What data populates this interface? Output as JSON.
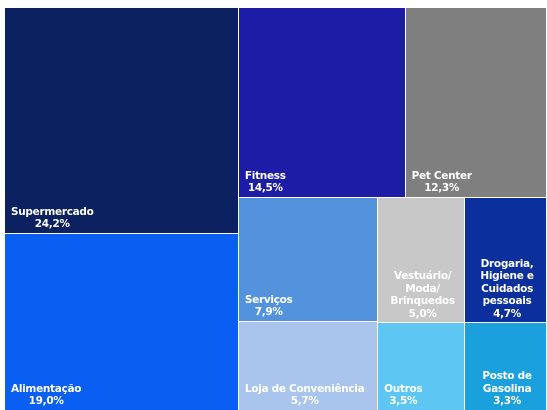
{
  "chart_data": {
    "type": "treemap",
    "categories": [
      "Supermercado",
      "Alimentação",
      "Fitness",
      "Pet Center",
      "Serviços",
      "Loja de Conveniência",
      "Vestuário/ Moda/ Brinquedos",
      "Drogaria, Higiene e Cuidados pessoais",
      "Outros",
      "Posto de Gasolina"
    ],
    "values": [
      24.2,
      19.0,
      14.5,
      12.3,
      7.9,
      5.7,
      5.0,
      4.7,
      3.5,
      3.3
    ],
    "value_labels": [
      "24,2%",
      "19,0%",
      "14,5%",
      "12,3%",
      "7,9%",
      "5,7%",
      "5,0%",
      "4,7%",
      "3,5%",
      "3,3%"
    ],
    "colors": [
      "#0b2160",
      "#0a5ef2",
      "#1c1ca6",
      "#7f7f7f",
      "#5393de",
      "#a9c5ed",
      "#c8c8c8",
      "#0b2f9c",
      "#5dc6f2",
      "#1aa0dd"
    ]
  }
}
